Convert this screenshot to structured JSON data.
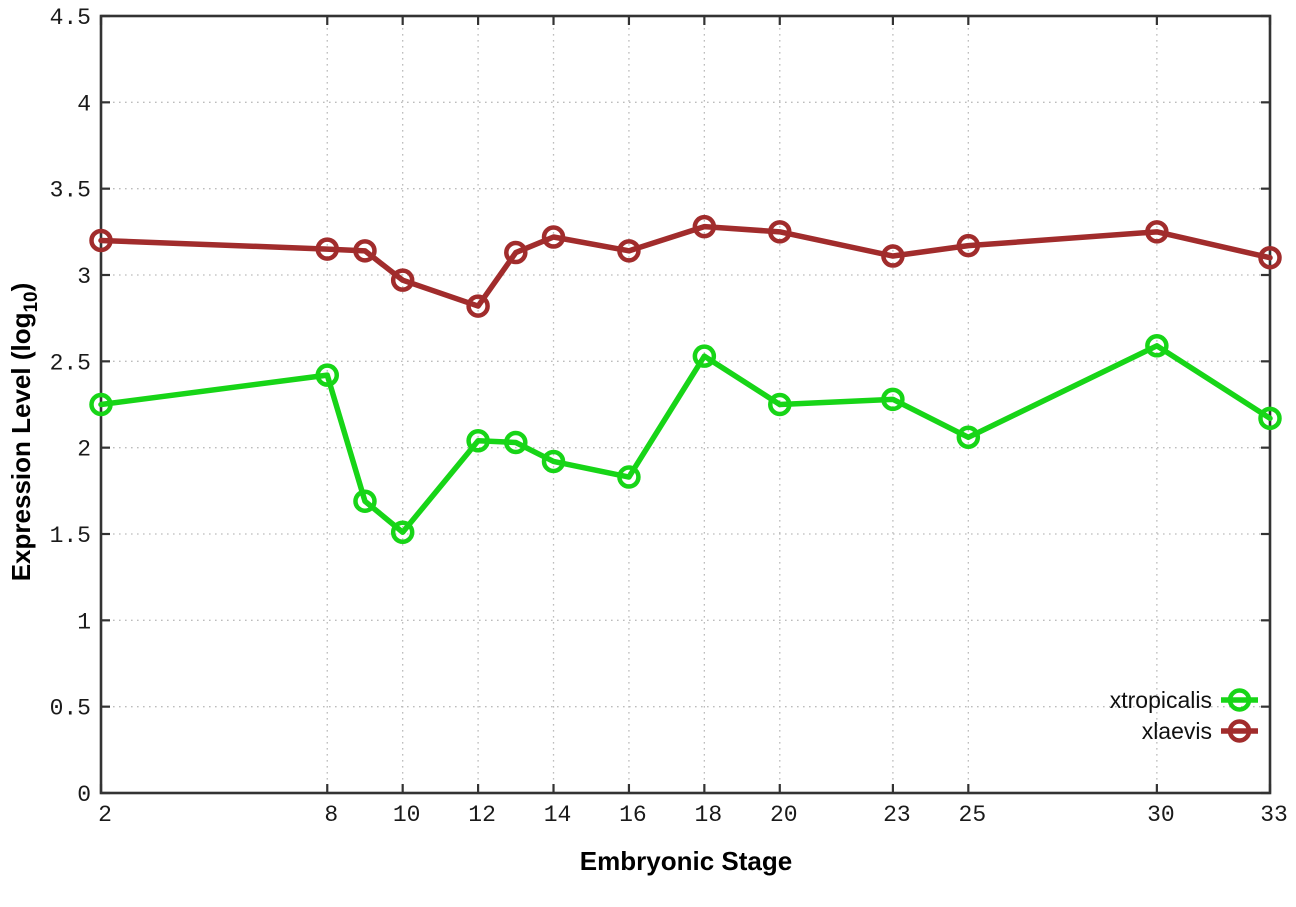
{
  "labels": {
    "xlabel": "Embryonic Stage",
    "ylabel_main": "Expression Level (log",
    "ylabel_sub": "10",
    "ylabel_suffix": ")"
  },
  "colors": {
    "background": "#ffffff",
    "grid": "#bcbcbc",
    "frame": "#333333",
    "tick_text": "#1a1a1a",
    "xtropicalis": "#17d517",
    "xlaevis": "#a12c2c"
  },
  "chart_data": {
    "type": "line",
    "title": "",
    "xlabel": "Embryonic Stage",
    "ylabel": "Expression Level (log10)",
    "xlim": [
      2,
      33
    ],
    "ylim": [
      0,
      4.5
    ],
    "xticks": [
      2,
      8,
      10,
      12,
      14,
      16,
      18,
      20,
      23,
      25,
      30,
      33
    ],
    "yticks": [
      0,
      0.5,
      1,
      1.5,
      2,
      2.5,
      3,
      3.5,
      4,
      4.5
    ],
    "grid": true,
    "grid_style": "dotted",
    "legend_position": "bottom-right",
    "x": [
      2,
      8,
      9,
      10,
      12,
      13,
      14,
      16,
      18,
      20,
      23,
      25,
      30,
      33
    ],
    "series": [
      {
        "name": "xtropicalis",
        "color": "#17d517",
        "marker": "open-circle",
        "values": [
          2.25,
          2.42,
          1.69,
          1.51,
          2.04,
          2.03,
          1.92,
          1.83,
          2.53,
          2.25,
          2.28,
          2.06,
          2.59,
          2.17
        ]
      },
      {
        "name": "xlaevis",
        "color": "#a12c2c",
        "marker": "open-circle",
        "values": [
          3.2,
          3.15,
          3.14,
          2.97,
          2.82,
          3.13,
          3.22,
          3.14,
          3.28,
          3.25,
          3.11,
          3.17,
          3.25,
          3.1
        ]
      }
    ]
  }
}
